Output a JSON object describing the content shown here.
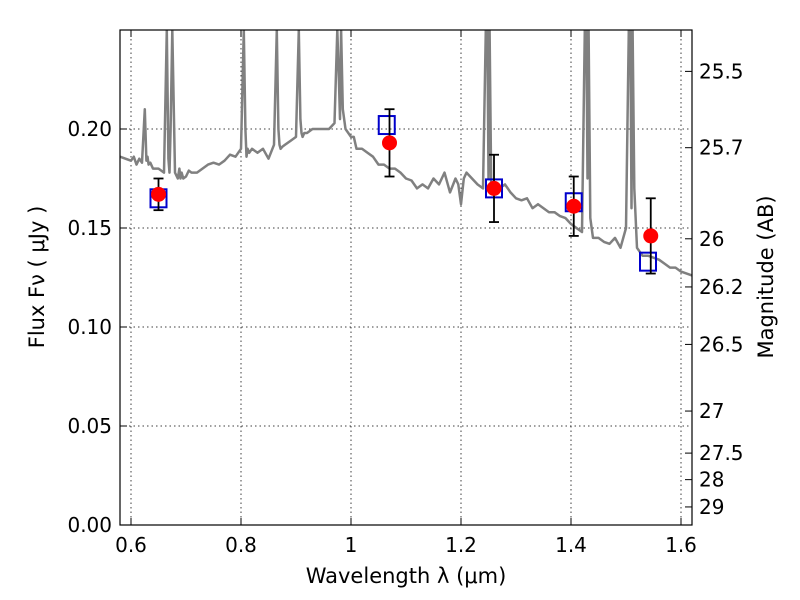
{
  "chart_data": {
    "type": "scatter",
    "title": "",
    "xlabel": "Wavelength  λ (μm)",
    "ylabel": "Flux  Fν  ( μJy )",
    "y2label": "Magnitude (AB)",
    "xlim": [
      0.58,
      1.62
    ],
    "ylim": [
      0.0,
      0.25
    ],
    "grid": true,
    "x_ticks": [
      "0.6",
      "0.8",
      "1",
      "1.2",
      "1.4",
      "1.6"
    ],
    "x_tick_values": [
      0.6,
      0.8,
      1.0,
      1.2,
      1.4,
      1.6
    ],
    "y_ticks": [
      "0.00",
      "0.05",
      "0.10",
      "0.15",
      "0.20"
    ],
    "y_tick_values": [
      0.0,
      0.05,
      0.1,
      0.15,
      0.2
    ],
    "y2_ticks": [
      "25.5",
      "25.7",
      "26",
      "26.2",
      "26.5",
      "27",
      "27.5",
      "28",
      "29"
    ],
    "y2_tick_values": [
      25.5,
      25.7,
      26.0,
      26.2,
      26.5,
      27.0,
      27.5,
      28.0,
      29.0
    ],
    "series": [
      {
        "type": "line",
        "color": "#808080",
        "x": [
          0.58,
          0.6,
          0.605,
          0.61,
          0.615,
          0.62,
          0.625,
          0.628,
          0.63,
          0.632,
          0.635,
          0.64,
          0.65,
          0.66,
          0.665,
          0.668,
          0.67,
          0.672,
          0.675,
          0.68,
          0.685,
          0.688,
          0.69,
          0.692,
          0.695,
          0.7,
          0.705,
          0.71,
          0.72,
          0.73,
          0.74,
          0.75,
          0.76,
          0.77,
          0.78,
          0.79,
          0.8,
          0.805,
          0.808,
          0.81,
          0.812,
          0.815,
          0.82,
          0.83,
          0.84,
          0.85,
          0.86,
          0.865,
          0.868,
          0.87,
          0.872,
          0.875,
          0.88,
          0.89,
          0.9,
          0.905,
          0.908,
          0.91,
          0.912,
          0.915,
          0.92,
          0.93,
          0.94,
          0.95,
          0.96,
          0.97,
          0.975,
          0.978,
          0.98,
          0.982,
          0.985,
          0.99,
          0.995,
          1.0,
          1.005,
          1.01,
          1.02,
          1.03,
          1.04,
          1.05,
          1.06,
          1.07,
          1.08,
          1.09,
          1.1,
          1.11,
          1.12,
          1.13,
          1.14,
          1.15,
          1.16,
          1.17,
          1.18,
          1.19,
          1.195,
          1.2,
          1.205,
          1.21,
          1.22,
          1.23,
          1.24,
          1.245,
          1.248,
          1.25,
          1.252,
          1.255,
          1.26,
          1.27,
          1.28,
          1.29,
          1.3,
          1.31,
          1.32,
          1.33,
          1.34,
          1.35,
          1.36,
          1.37,
          1.38,
          1.39,
          1.4,
          1.41,
          1.42,
          1.425,
          1.428,
          1.43,
          1.432,
          1.435,
          1.44,
          1.45,
          1.46,
          1.47,
          1.48,
          1.49,
          1.5,
          1.505,
          1.508,
          1.51,
          1.512,
          1.515,
          1.52,
          1.53,
          1.54,
          1.55,
          1.56,
          1.57,
          1.58,
          1.59,
          1.6,
          1.62
        ],
        "y": [
          0.186,
          0.184,
          0.186,
          0.182,
          0.185,
          0.183,
          0.21,
          0.184,
          0.186,
          0.182,
          0.183,
          0.18,
          0.18,
          0.178,
          0.25,
          0.185,
          0.178,
          0.2,
          0.25,
          0.178,
          0.175,
          0.18,
          0.175,
          0.178,
          0.175,
          0.176,
          0.179,
          0.178,
          0.178,
          0.18,
          0.182,
          0.183,
          0.182,
          0.184,
          0.187,
          0.186,
          0.19,
          0.25,
          0.2,
          0.186,
          0.19,
          0.188,
          0.19,
          0.188,
          0.19,
          0.185,
          0.192,
          0.25,
          0.2,
          0.192,
          0.19,
          0.191,
          0.192,
          0.194,
          0.196,
          0.25,
          0.205,
          0.198,
          0.196,
          0.198,
          0.198,
          0.2,
          0.2,
          0.2,
          0.2,
          0.203,
          0.25,
          0.225,
          0.205,
          0.25,
          0.21,
          0.2,
          0.198,
          0.196,
          0.196,
          0.19,
          0.19,
          0.188,
          0.186,
          0.182,
          0.182,
          0.18,
          0.18,
          0.178,
          0.175,
          0.174,
          0.17,
          0.172,
          0.17,
          0.175,
          0.172,
          0.178,
          0.168,
          0.175,
          0.172,
          0.162,
          0.175,
          0.178,
          0.175,
          0.172,
          0.17,
          0.25,
          0.25,
          0.175,
          0.25,
          0.172,
          0.168,
          0.17,
          0.172,
          0.168,
          0.165,
          0.164,
          0.165,
          0.16,
          0.162,
          0.16,
          0.158,
          0.158,
          0.156,
          0.155,
          0.152,
          0.15,
          0.148,
          0.25,
          0.25,
          0.175,
          0.25,
          0.155,
          0.145,
          0.145,
          0.143,
          0.142,
          0.145,
          0.14,
          0.15,
          0.25,
          0.25,
          0.16,
          0.25,
          0.17,
          0.14,
          0.136,
          0.136,
          0.135,
          0.134,
          0.132,
          0.13,
          0.13,
          0.128,
          0.126
        ]
      },
      {
        "name": "",
        "type": "scatter",
        "marker": "circle",
        "color": "#ff0000",
        "x": [
          0.65,
          1.07,
          1.26,
          1.405,
          1.545
        ],
        "y": [
          0.167,
          0.193,
          0.17,
          0.161,
          0.146
        ],
        "yerr": [
          0.008,
          0.017,
          0.017,
          0.015,
          0.019
        ]
      },
      {
        "name": "",
        "type": "scatter",
        "marker": "square-open",
        "color": "#0000cc",
        "x": [
          0.65,
          1.065,
          1.26,
          1.405,
          1.54
        ],
        "y": [
          0.165,
          0.202,
          0.17,
          0.163,
          0.133
        ]
      }
    ]
  }
}
